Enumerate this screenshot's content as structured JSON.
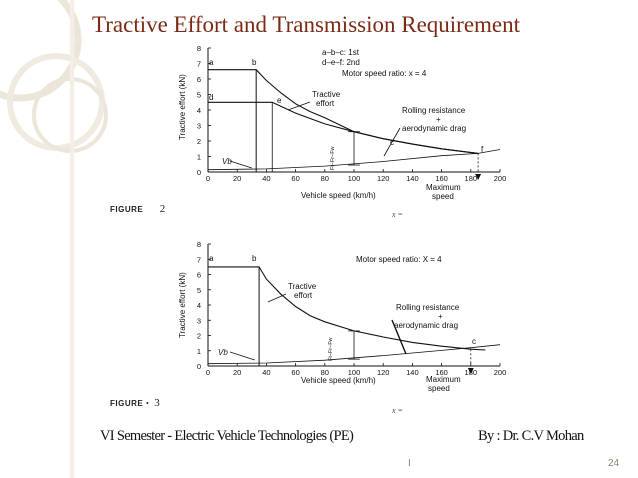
{
  "slide": {
    "title": "Tractive Effort and Transmission Requirement",
    "footer_left": "VI Semester -   Electric Vehicle Technologies (PE)",
    "footer_right": "By : Dr. C.V Mohan",
    "center_mark": "I",
    "page_number": "24"
  },
  "figure1": {
    "caption_label": "FIGURE",
    "caption_number": "2",
    "caption_extra": "x =",
    "legend_line1": "a–b–c: 1st",
    "legend_line2": "d–e–f: 2nd",
    "motor_ratio": "Motor speed ratio: x = 4",
    "tractive_label_1": "Tractive",
    "tractive_label_2": "effort",
    "rolling_label_1": "Rolling resistance",
    "rolling_label_2": "+",
    "rolling_label_3": "aerodynamic drag",
    "ylabel": "Tractive effort (kN)",
    "xlabel": "Vehicle speed (km/h)",
    "max_speed_1": "Maximum",
    "max_speed_2": "speed",
    "vb": "Vb",
    "force_label": "Ft–Fr–Fw",
    "points": {
      "a": "a",
      "b": "b",
      "c": "c",
      "d": "d",
      "e": "e",
      "f": "f"
    },
    "x_ticks": [
      "0",
      "20",
      "40",
      "60",
      "80",
      "100",
      "120",
      "140",
      "160",
      "180",
      "200"
    ],
    "y_ticks": [
      "0",
      "1",
      "2",
      "3",
      "4",
      "5",
      "6",
      "7",
      "8"
    ]
  },
  "figure2": {
    "caption_label": "FIGURE",
    "caption_number": "3",
    "caption_extra": "x =",
    "motor_ratio": "Motor speed ratio:  X = 4",
    "tractive_label_1": "Tractive",
    "tractive_label_2": "effort",
    "rolling_label_1": "Rolling resistance",
    "rolling_label_2": "+",
    "rolling_label_3": "aerodynamic drag",
    "ylabel": "Tractive effort (kN)",
    "xlabel": "Vehicle speed (km/h)",
    "max_speed_1": "Maximum",
    "max_speed_2": "speed",
    "vb": "Vb",
    "force_label": "Ft–Fr–Fw",
    "points": {
      "a": "a",
      "b": "b",
      "c": "c"
    },
    "x_ticks": [
      "0",
      "20",
      "40",
      "60",
      "80",
      "100",
      "120",
      "140",
      "160",
      "180",
      "200"
    ],
    "y_ticks": [
      "0",
      "1",
      "2",
      "3",
      "4",
      "5",
      "6",
      "7",
      "8"
    ]
  },
  "chart_data": [
    {
      "type": "line",
      "x_unit": "km/h",
      "xlim": [
        0,
        200
      ],
      "ylim": [
        0,
        8
      ],
      "series": [
        {
          "x": [
            0,
            33,
            40,
            50,
            60,
            70,
            80,
            100,
            120,
            140,
            160,
            185
          ],
          "y": [
            6.6,
            6.6,
            5.9,
            5.1,
            4.4,
            3.9,
            3.5,
            2.6,
            2.15,
            1.8,
            1.5,
            1.2
          ]
        },
        {
          "x": [
            0,
            44,
            60,
            80,
            100,
            120,
            140,
            160,
            185
          ],
          "y": [
            4.5,
            4.5,
            3.8,
            3.1,
            2.6,
            2.15,
            1.8,
            1.5,
            1.2
          ]
        },
        {
          "x": [
            0,
            40,
            80,
            120,
            160,
            185,
            200
          ],
          "y": [
            0.15,
            0.2,
            0.38,
            0.68,
            1.05,
            1.2,
            1.45
          ]
        }
      ]
    },
    {
      "type": "line",
      "x_unit": "km/h",
      "xlim": [
        0,
        200
      ],
      "ylim": [
        0,
        8
      ],
      "series": [
        {
          "x": [
            0,
            35,
            40,
            50,
            60,
            70,
            80,
            100,
            120,
            140,
            160,
            180,
            190
          ],
          "y": [
            6.5,
            6.5,
            5.7,
            4.7,
            3.9,
            3.3,
            2.9,
            2.3,
            1.9,
            1.55,
            1.3,
            1.1,
            1.05
          ]
        },
        {
          "x": [
            0,
            40,
            80,
            120,
            160,
            180,
            200
          ],
          "y": [
            0.15,
            0.2,
            0.38,
            0.68,
            1.02,
            1.2,
            1.4
          ]
        }
      ]
    }
  ]
}
